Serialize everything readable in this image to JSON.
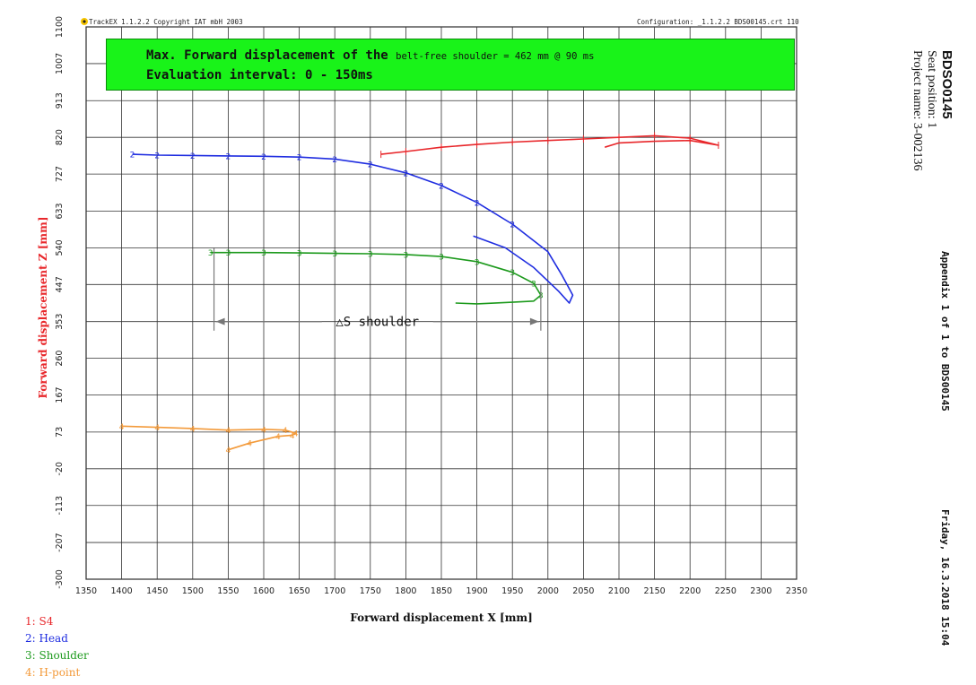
{
  "header": {
    "left": "TrackEX 1.1.2.2  Copyright IAT mbH 2003",
    "right": "Configuration: _1.1.2.2 BDS00145.crt 110"
  },
  "banner": {
    "line1_main": "Max. Forward displacement of the",
    "line1_small": "belt-free shoulder = 462 mm @ 90 ms",
    "line2": "Evaluation interval: 0 - 150ms"
  },
  "side": {
    "report_id": "BDSO0145",
    "seat_position": "Seat position: 1",
    "project_name": "Project name: 3-002136",
    "appendix": "Appendix 1 of 1 to BDS00145",
    "date": "Friday, 16.3.2018 15:04"
  },
  "chart_data": {
    "type": "line",
    "title": "",
    "xlabel": "Forward displacement X [mm]",
    "ylabel": "Forward displacement Z [mm]",
    "xlim": [
      1350,
      2350
    ],
    "ylim": [
      -300,
      1100
    ],
    "x_ticks": [
      1350,
      1400,
      1450,
      1500,
      1550,
      1600,
      1650,
      1700,
      1750,
      1800,
      1850,
      1900,
      1950,
      2000,
      2050,
      2100,
      2150,
      2200,
      2250,
      2300,
      2350
    ],
    "y_ticks": [
      -300,
      -207,
      -113,
      -20,
      73,
      167,
      260,
      353,
      447,
      540,
      633,
      727,
      820,
      913,
      1007,
      1100
    ],
    "grid": true,
    "series": [
      {
        "name": "1: S4",
        "color": "#e8272b",
        "marker": "|",
        "x": [
          1765,
          1800,
          1850,
          1900,
          1950,
          2000,
          2050,
          2100,
          2150,
          2200,
          2240,
          2200,
          2150,
          2100,
          2080
        ],
        "y": [
          777,
          784,
          795,
          802,
          808,
          812,
          816,
          820,
          824,
          818,
          800,
          812,
          810,
          806,
          795
        ]
      },
      {
        "name": "2: Head",
        "color": "#1f2de0",
        "marker": "2",
        "x": [
          1415,
          1450,
          1500,
          1550,
          1600,
          1650,
          1700,
          1750,
          1800,
          1850,
          1900,
          1950,
          2000,
          2020,
          2035,
          2030,
          2015,
          1980,
          1940,
          1895
        ],
        "y": [
          777,
          775,
          774,
          773,
          772,
          770,
          765,
          752,
          730,
          698,
          655,
          600,
          530,
          470,
          420,
          400,
          430,
          490,
          540,
          570
        ]
      },
      {
        "name": "3: Shoulder",
        "color": "#1d9a1d",
        "marker": "3",
        "x": [
          1525,
          1550,
          1600,
          1650,
          1700,
          1750,
          1800,
          1850,
          1900,
          1950,
          1980,
          1990,
          1980,
          1950,
          1900,
          1870
        ],
        "y": [
          528,
          528,
          528,
          527,
          526,
          525,
          523,
          518,
          505,
          478,
          450,
          420,
          405,
          402,
          398,
          400
        ]
      },
      {
        "name": "4: H-point",
        "color": "#f39a3a",
        "marker": "4",
        "x": [
          1400,
          1450,
          1500,
          1550,
          1600,
          1630,
          1645,
          1640,
          1620,
          1580,
          1550
        ],
        "y": [
          88,
          85,
          82,
          78,
          80,
          78,
          70,
          65,
          62,
          45,
          28
        ]
      }
    ],
    "annotation": {
      "label": "△S shoulder",
      "x_start": 1530,
      "x_end": 1990,
      "y": 353
    }
  }
}
